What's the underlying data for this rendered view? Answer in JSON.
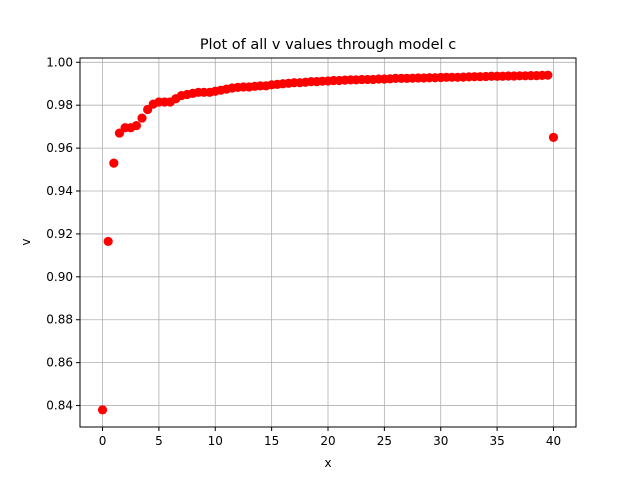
{
  "chart_data": {
    "type": "scatter",
    "title": "Plot of all v values through model c",
    "xlabel": "x",
    "ylabel": "v",
    "xlim": [
      -2,
      42
    ],
    "ylim": [
      0.83,
      1.002
    ],
    "xticks": [
      0,
      5,
      10,
      15,
      20,
      25,
      30,
      35,
      40
    ],
    "yticks": [
      0.84,
      0.86,
      0.88,
      0.9,
      0.92,
      0.94,
      0.96,
      0.98,
      1.0
    ],
    "xtick_labels": [
      "0",
      "5",
      "10",
      "15",
      "20",
      "25",
      "30",
      "35",
      "40"
    ],
    "ytick_labels": [
      "0.84",
      "0.86",
      "0.88",
      "0.90",
      "0.92",
      "0.94",
      "0.96",
      "0.98",
      "1.00"
    ],
    "grid": true,
    "marker_color": "#ff0000",
    "series": [
      {
        "name": "v",
        "x": [
          0,
          0.5,
          1,
          1.5,
          2,
          2.5,
          3,
          3.5,
          4,
          4.5,
          5,
          5.5,
          6,
          6.5,
          7,
          7.5,
          8,
          8.5,
          9,
          9.5,
          10,
          10.5,
          11,
          11.5,
          12,
          12.5,
          13,
          13.5,
          14,
          14.5,
          15,
          15.5,
          16,
          16.5,
          17,
          17.5,
          18,
          18.5,
          19,
          19.5,
          20,
          20.5,
          21,
          21.5,
          22,
          22.5,
          23,
          23.5,
          24,
          24.5,
          25,
          25.5,
          26,
          26.5,
          27,
          27.5,
          28,
          28.5,
          29,
          29.5,
          30,
          30.5,
          31,
          31.5,
          32,
          32.5,
          33,
          33.5,
          34,
          34.5,
          35,
          35.5,
          36,
          36.5,
          37,
          37.5,
          38,
          38.5,
          39,
          39.5,
          40
        ],
        "values": [
          0.838,
          0.9165,
          0.953,
          0.967,
          0.9695,
          0.9695,
          0.9705,
          0.974,
          0.978,
          0.9805,
          0.9815,
          0.9815,
          0.9815,
          0.983,
          0.9845,
          0.985,
          0.9855,
          0.986,
          0.986,
          0.986,
          0.9865,
          0.987,
          0.9875,
          0.988,
          0.9883,
          0.9885,
          0.9885,
          0.9888,
          0.989,
          0.989,
          0.9895,
          0.9897,
          0.99,
          0.9902,
          0.9905,
          0.9905,
          0.9907,
          0.991,
          0.991,
          0.9912,
          0.9913,
          0.9915,
          0.9915,
          0.9917,
          0.9918,
          0.9918,
          0.992,
          0.992,
          0.992,
          0.9922,
          0.9922,
          0.9923,
          0.9925,
          0.9925,
          0.9925,
          0.9926,
          0.9927,
          0.9927,
          0.9928,
          0.9928,
          0.9929,
          0.993,
          0.993,
          0.993,
          0.9931,
          0.9932,
          0.9933,
          0.9933,
          0.9934,
          0.9935,
          0.9935,
          0.9935,
          0.9936,
          0.9936,
          0.9937,
          0.9937,
          0.9938,
          0.9938,
          0.9939,
          0.994,
          0.965
        ]
      }
    ]
  }
}
